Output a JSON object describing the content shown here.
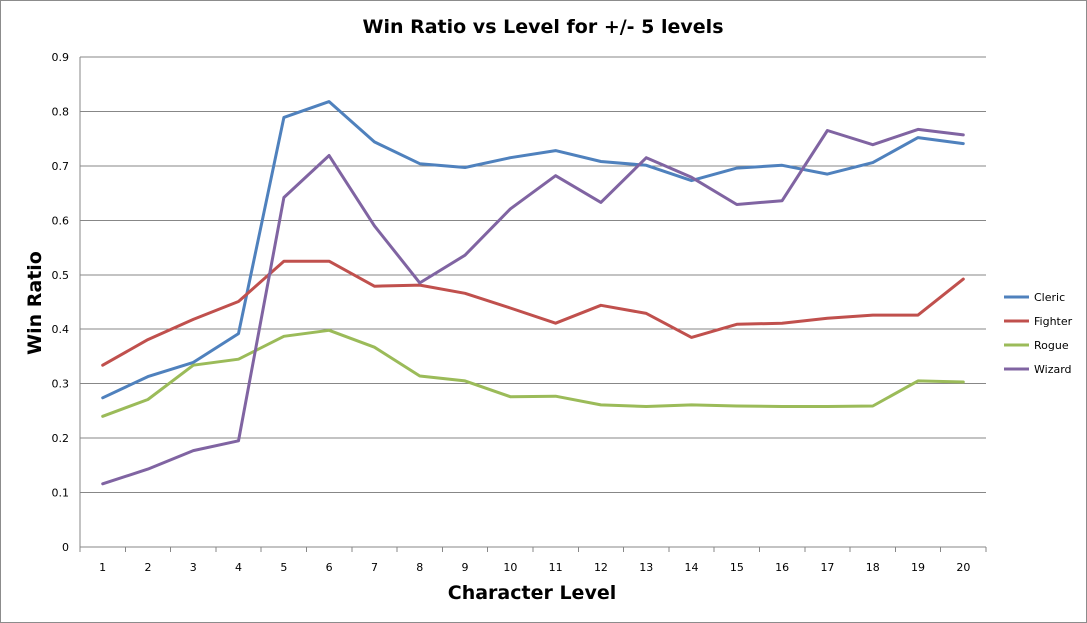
{
  "chart_data": {
    "type": "line",
    "title": "Win Ratio vs Level for +/- 5 levels",
    "xlabel": "Character Level",
    "ylabel": "Win Ratio",
    "ylim": [
      0,
      0.9
    ],
    "yticks": [
      "0",
      "0.1",
      "0.2",
      "0.3",
      "0.4",
      "0.5",
      "0.6",
      "0.7",
      "0.8",
      "0.9"
    ],
    "categories": [
      "1",
      "2",
      "3",
      "4",
      "5",
      "6",
      "7",
      "8",
      "9",
      "10",
      "11",
      "12",
      "13",
      "14",
      "15",
      "16",
      "17",
      "18",
      "19",
      "20"
    ],
    "grid": "horizontal",
    "legend_position": "right",
    "series": [
      {
        "name": "Cleric",
        "color": "#4f81bd",
        "values": [
          0.274,
          0.313,
          0.339,
          0.392,
          0.789,
          0.818,
          0.744,
          0.704,
          0.697,
          0.715,
          0.728,
          0.708,
          0.701,
          0.673,
          0.696,
          0.701,
          0.685,
          0.706,
          0.752,
          0.741
        ]
      },
      {
        "name": "Fighter",
        "color": "#c0504d",
        "values": [
          0.334,
          0.381,
          0.418,
          0.451,
          0.525,
          0.525,
          0.479,
          0.481,
          0.466,
          0.439,
          0.411,
          0.444,
          0.429,
          0.385,
          0.409,
          0.411,
          0.42,
          0.426,
          0.426,
          0.492
        ]
      },
      {
        "name": "Rogue",
        "color": "#9bbb59",
        "values": [
          0.24,
          0.271,
          0.334,
          0.345,
          0.387,
          0.398,
          0.367,
          0.314,
          0.305,
          0.276,
          0.277,
          0.261,
          0.258,
          0.261,
          0.259,
          0.258,
          0.258,
          0.259,
          0.305,
          0.303
        ]
      },
      {
        "name": "Wizard",
        "color": "#8064a2",
        "values": [
          0.116,
          0.143,
          0.177,
          0.195,
          0.642,
          0.719,
          0.59,
          0.485,
          0.536,
          0.621,
          0.682,
          0.633,
          0.715,
          0.679,
          0.629,
          0.636,
          0.765,
          0.739,
          0.767,
          0.757
        ]
      }
    ]
  }
}
